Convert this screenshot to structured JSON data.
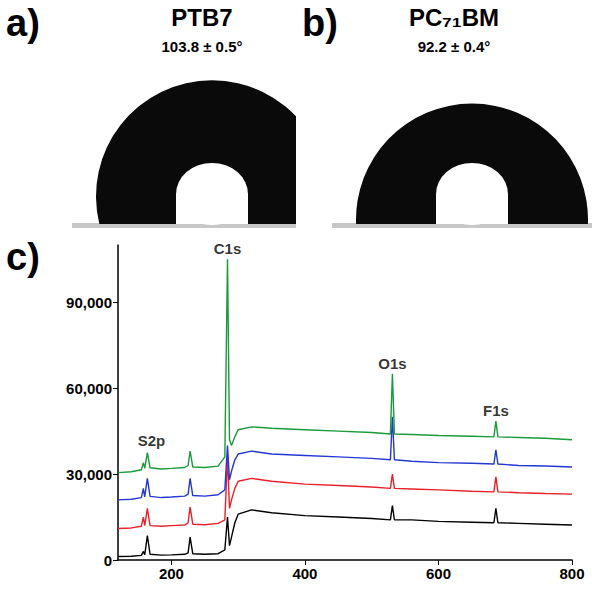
{
  "panels": [
    {
      "label": "a)",
      "title": "PTB7",
      "subtitle": "103.8 ± 0.5°"
    },
    {
      "label": "b)",
      "title": "PC₇₁BM",
      "subtitle": "92.2 ± 0.4°"
    }
  ],
  "chart_data": {
    "type": "line",
    "label": "c)",
    "x": [
      120,
      140,
      155,
      158,
      160,
      164,
      168,
      185,
      200,
      220,
      225,
      228,
      232,
      250,
      270,
      280,
      284,
      287,
      290,
      295,
      300,
      320,
      350,
      400,
      450,
      500,
      528,
      531,
      534,
      560,
      600,
      650,
      683,
      686,
      689,
      720,
      760,
      800
    ],
    "series": [
      {
        "color": "#000000",
        "values": [
          1200,
          1300,
          1600,
          3000,
          1800,
          8500,
          2000,
          1700,
          1800,
          2000,
          2500,
          8000,
          2200,
          2000,
          2200,
          3500,
          15000,
          5000,
          8000,
          13000,
          16000,
          17500,
          16500,
          15500,
          15000,
          14500,
          14000,
          19000,
          14000,
          14000,
          13500,
          13200,
          13000,
          18000,
          13000,
          12800,
          12500,
          12200
        ]
      },
      {
        "color": "#e8202a",
        "values": [
          11000,
          11200,
          11800,
          15000,
          12000,
          18000,
          12000,
          11800,
          12000,
          12200,
          13000,
          18500,
          12500,
          12300,
          12800,
          14000,
          36000,
          18000,
          21000,
          25000,
          27500,
          28500,
          27500,
          26500,
          26000,
          25500,
          25000,
          30000,
          25000,
          24800,
          24500,
          24000,
          23800,
          29000,
          23800,
          23500,
          23200,
          23000
        ]
      },
      {
        "color": "#2338d0",
        "values": [
          21000,
          21200,
          21800,
          25000,
          22000,
          28500,
          22200,
          21800,
          22000,
          22300,
          23000,
          28500,
          22500,
          22300,
          22800,
          24500,
          40000,
          28000,
          31000,
          35000,
          37000,
          38000,
          37000,
          36500,
          36000,
          35500,
          35000,
          50000,
          35000,
          34500,
          34000,
          33800,
          33500,
          38500,
          33500,
          33000,
          32800,
          32500
        ]
      },
      {
        "color": "#1a9a3a",
        "values": [
          30500,
          30800,
          31500,
          34000,
          32000,
          37500,
          32200,
          31800,
          32000,
          32300,
          33000,
          38000,
          32500,
          32300,
          32800,
          36000,
          105000,
          42000,
          40000,
          43000,
          45500,
          46500,
          46000,
          45500,
          45000,
          44500,
          44000,
          65000,
          44000,
          43800,
          43500,
          43200,
          43000,
          48500,
          43000,
          42800,
          42500,
          42000
        ]
      }
    ],
    "annotations": [
      {
        "text": "S2p",
        "x": 170,
        "y": 38000
      },
      {
        "text": "C1s",
        "x": 284,
        "y": 105000
      },
      {
        "text": "O1s",
        "x": 531,
        "y": 65000
      },
      {
        "text": "F1s",
        "x": 686,
        "y": 48500
      }
    ],
    "xlim": [
      120,
      800
    ],
    "xticks": [
      200,
      400,
      600,
      800
    ],
    "ylim": [
      0,
      110000
    ],
    "yticks": [
      0,
      30000,
      60000,
      90000
    ],
    "grid": false
  }
}
